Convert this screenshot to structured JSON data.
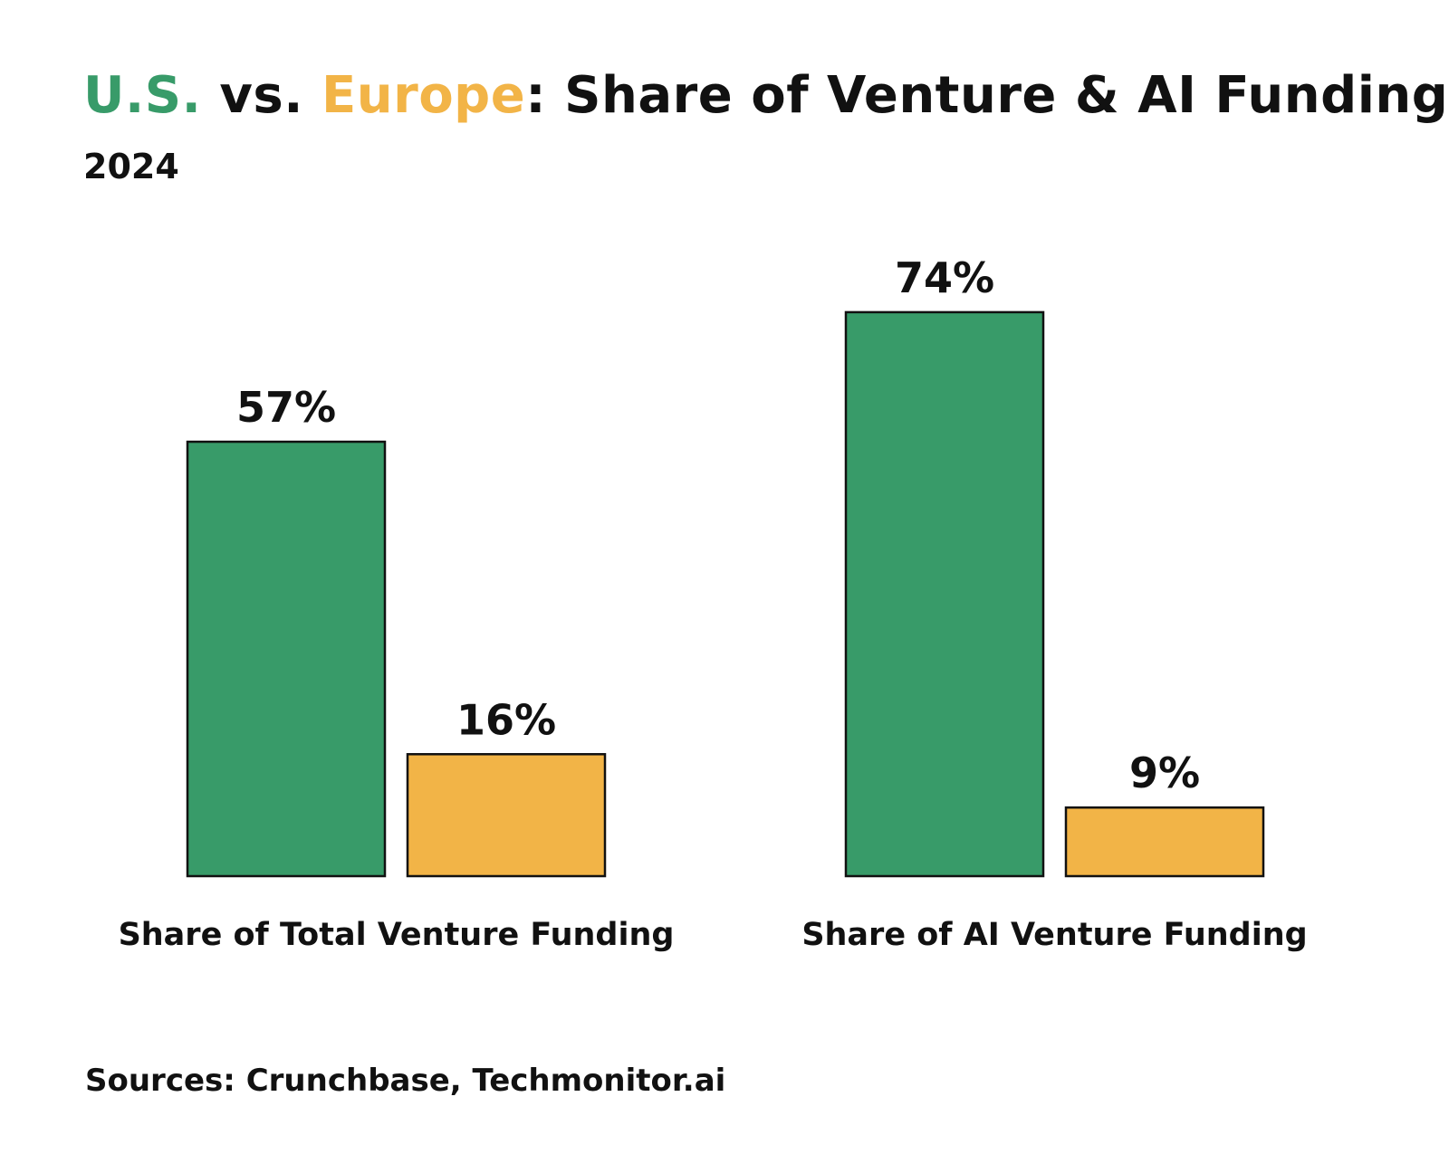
{
  "header": {
    "title_us": "U.S.",
    "title_vs": " vs. ",
    "title_europe": "Europe",
    "title_rest": ": Share of Venture & AI Funding",
    "subtitle": "2024"
  },
  "footer": {
    "source": "Sources: Crunchbase, Techmonitor.ai"
  },
  "colors": {
    "us": "#389b69",
    "europe": "#f2b447",
    "outline": "#111111",
    "text": "#111111"
  },
  "chart_data": {
    "type": "bar",
    "title": "U.S. vs. Europe: Share of Venture & AI Funding",
    "subtitle": "2024",
    "categories": [
      "Share of Total Venture Funding",
      "Share of AI Venture Funding"
    ],
    "series": [
      {
        "name": "U.S.",
        "color": "#389b69",
        "values": [
          57,
          74
        ],
        "labels": [
          "57%",
          "74%"
        ]
      },
      {
        "name": "Europe",
        "color": "#f2b447",
        "values": [
          16,
          9
        ],
        "labels": [
          "16%",
          "9%"
        ]
      }
    ],
    "xlabel": "",
    "ylabel": "",
    "ylim": [
      0,
      100
    ],
    "grid": false,
    "legend": "none"
  }
}
